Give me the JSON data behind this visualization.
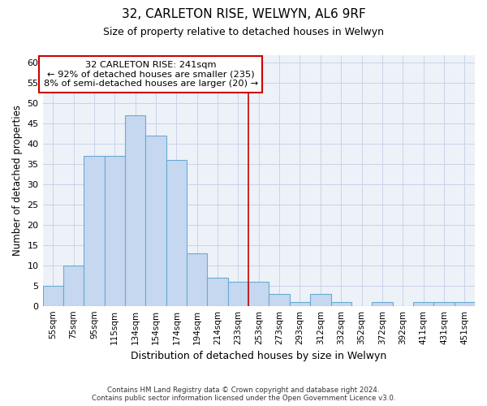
{
  "title1": "32, CARLETON RISE, WELWYN, AL6 9RF",
  "title2": "Size of property relative to detached houses in Welwyn",
  "xlabel": "Distribution of detached houses by size in Welwyn",
  "ylabel": "Number of detached properties",
  "categories": [
    "55sqm",
    "75sqm",
    "95sqm",
    "115sqm",
    "134sqm",
    "154sqm",
    "174sqm",
    "194sqm",
    "214sqm",
    "233sqm",
    "253sqm",
    "273sqm",
    "293sqm",
    "312sqm",
    "332sqm",
    "352sqm",
    "372sqm",
    "392sqm",
    "411sqm",
    "431sqm",
    "451sqm"
  ],
  "values": [
    5,
    10,
    37,
    37,
    47,
    42,
    36,
    13,
    7,
    6,
    6,
    3,
    1,
    3,
    1,
    0,
    1,
    0,
    1,
    1,
    1
  ],
  "bar_color": "#c5d8f0",
  "bar_edge_color": "#6aaad4",
  "bar_linewidth": 0.8,
  "vline_x": 9.5,
  "vline_color": "#cc0000",
  "annotation_line1": "32 CARLETON RISE: 241sqm",
  "annotation_line2": "← 92% of detached houses are smaller (235)",
  "annotation_line3": "8% of semi-detached houses are larger (20) →",
  "annotation_box_edgecolor": "#cc0000",
  "ylim": [
    0,
    62
  ],
  "yticks": [
    0,
    5,
    10,
    15,
    20,
    25,
    30,
    35,
    40,
    45,
    50,
    55,
    60
  ],
  "grid_color": "#c8d4e8",
  "plot_bgcolor": "#edf2f8",
  "footer_line1": "Contains HM Land Registry data © Crown copyright and database right 2024.",
  "footer_line2": "Contains public sector information licensed under the Open Government Licence v3.0."
}
